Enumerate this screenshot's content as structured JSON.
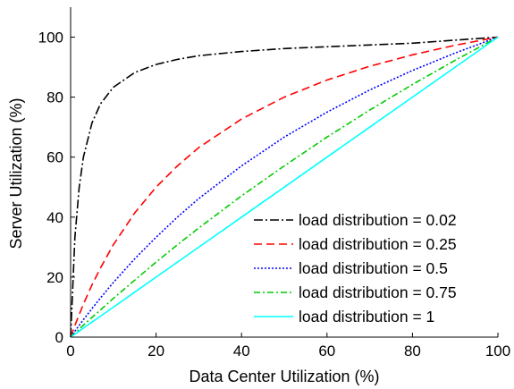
{
  "chart_data": {
    "type": "line",
    "title": "",
    "xlabel": "Data Center Utilization (%)",
    "ylabel": "Server Utilization (%)",
    "xlim": [
      0,
      100
    ],
    "ylim": [
      0,
      110
    ],
    "xticks": [
      "0",
      "20",
      "40",
      "60",
      "80",
      "100"
    ],
    "yticks": [
      "0",
      "20",
      "40",
      "60",
      "80",
      "100"
    ],
    "grid": false,
    "legend_position": "bottom-right",
    "x": [
      0,
      1,
      2,
      3,
      5,
      7,
      10,
      15,
      20,
      25,
      30,
      40,
      50,
      60,
      70,
      80,
      90,
      100
    ],
    "series": [
      {
        "name": "load distribution = 0.02",
        "color": "#000000",
        "dash": "10,3,2,3",
        "values": [
          0,
          33.3,
          50.0,
          60.0,
          71.4,
          77.8,
          83.3,
          88.2,
          90.9,
          92.6,
          93.8,
          95.2,
          96.2,
          96.8,
          97.4,
          98.0,
          99.0,
          100
        ]
      },
      {
        "name": "load distribution = 0.25",
        "color": "#ff0000",
        "dash": "9,5",
        "values": [
          0,
          3.9,
          7.5,
          11.0,
          17.4,
          23.1,
          30.8,
          41.4,
          50.0,
          57.1,
          63.2,
          72.7,
          80.0,
          85.7,
          90.3,
          94.1,
          97.3,
          100
        ]
      },
      {
        "name": "load distribution = 0.5",
        "color": "#0000ff",
        "dash": "2,2",
        "values": [
          0,
          2.0,
          3.9,
          5.8,
          9.5,
          13.1,
          18.2,
          26.1,
          33.3,
          40.0,
          46.2,
          57.1,
          66.7,
          75.0,
          82.4,
          88.9,
          94.7,
          100
        ]
      },
      {
        "name": "load distribution = 0.75",
        "color": "#00cc00",
        "dash": "7,3,2,3",
        "values": [
          0,
          1.3,
          2.6,
          4.0,
          6.6,
          9.1,
          12.9,
          19.0,
          25.0,
          30.8,
          36.4,
          47.1,
          57.1,
          66.7,
          75.7,
          84.2,
          92.3,
          100
        ]
      },
      {
        "name": "load distribution = 1",
        "color": "#00ffff",
        "dash": "",
        "values": [
          0,
          1,
          2,
          3,
          5,
          7,
          10,
          15,
          20,
          25,
          30,
          40,
          50,
          60,
          70,
          80,
          90,
          100
        ]
      }
    ]
  }
}
